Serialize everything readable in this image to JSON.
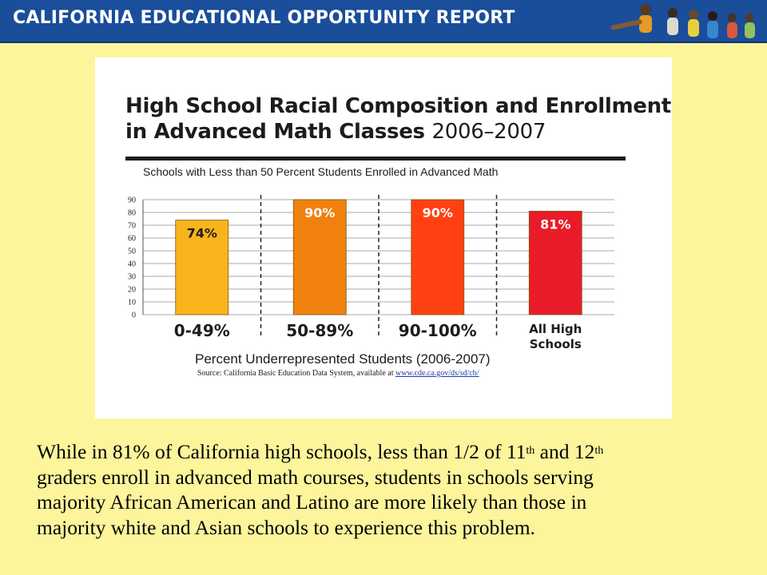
{
  "banner": {
    "title": "CALIFORNIA EDUCATIONAL OPPORTUNITY REPORT"
  },
  "chart_data": {
    "type": "bar",
    "title_bold": "High School Racial Composition and Enrollment in Advanced Math Classes",
    "title_year": "2006–2007",
    "title_lines": [
      "High School Racial Composition and Enrollment",
      "in Advanced Math Classes"
    ],
    "subtitle": "Schools with Less than 50 Percent Students Enrolled in Advanced Math",
    "xlabel": "Percent Underrepresented Students (2006-2007)",
    "categories": [
      "0-49%",
      "50-89%",
      "90-100%",
      "All High Schools"
    ],
    "category_lines": [
      [
        "0-49%"
      ],
      [
        "50-89%"
      ],
      [
        "90-100%"
      ],
      [
        "All High",
        "Schools"
      ]
    ],
    "values": [
      74,
      90,
      90,
      81
    ],
    "data_labels": [
      "74%",
      "90%",
      "90%",
      "81%"
    ],
    "colors": [
      "#f8b41a",
      "#f0810e",
      "#ff4112",
      "#ea1b28"
    ],
    "ylim": [
      0,
      90
    ],
    "yticks": [
      0,
      10,
      20,
      30,
      40,
      50,
      60,
      70,
      80,
      90
    ],
    "grid": true,
    "source_text": "Source:  California Basic Education Data System, available at ",
    "source_url": "www.cde.ca.gov/ds/sd/cb/"
  },
  "body": {
    "line1_a": "While in 81% of California high schools, less than 1/2 of 11",
    "sup1": "th",
    "line1_b": " and 12",
    "sup2": "th",
    "line2": "graders enroll in advanced math courses, students in schools serving",
    "line3": "majority African American and Latino are more likely than those in",
    "line4": "majority white and Asian schools to experience this problem."
  }
}
